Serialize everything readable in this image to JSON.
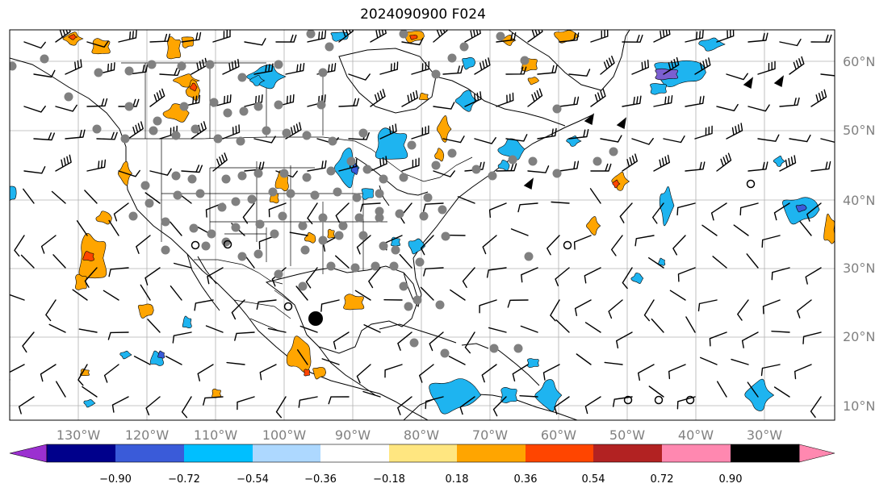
{
  "title": "2024090900 F024",
  "lat_labels": [
    "60°N",
    "50°N",
    "40°N",
    "30°N",
    "20°N",
    "10°N"
  ],
  "lon_labels": [
    "130°W",
    "120°W",
    "110°W",
    "100°W",
    "90°W",
    "80°W",
    "70°W",
    "60°W",
    "50°W",
    "40°W",
    "30°W"
  ],
  "colorbar": {
    "ticks": [
      "−0.90",
      "−0.72",
      "−0.54",
      "−0.36",
      "−0.18",
      "0.18",
      "0.36",
      "0.54",
      "0.72",
      "0.90"
    ],
    "colors": [
      "#9b30d0",
      "#00008b",
      "#3a5bd9",
      "#00bfff",
      "#add8ff",
      "#ffffff",
      "#ffe680",
      "#ffa500",
      "#ff4500",
      "#b22222",
      "#ff88b0"
    ]
  },
  "colors": {
    "positive_light": "#ffa500",
    "positive_strong": "#ff4500",
    "negative_light": "#1eb4f0",
    "negative_strong": "#3a5bd9",
    "negative_darkest": "#7b5fd0",
    "station_marker": "#808080",
    "grid": "#b0b0b0"
  }
}
